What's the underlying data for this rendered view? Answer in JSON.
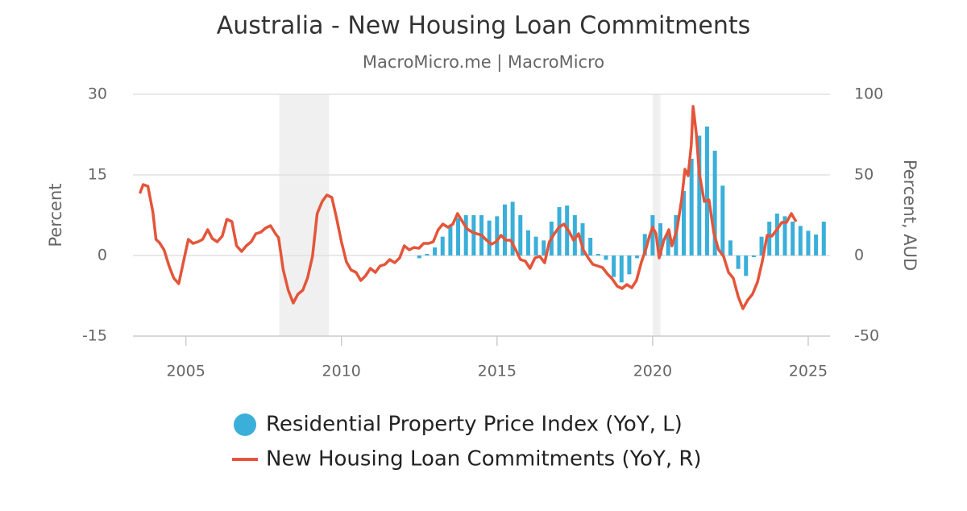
{
  "chart_data": {
    "type": "bar-line",
    "title": "Australia - New Housing Loan Commitments",
    "subtitle": "MacroMicro.me | MacroMicro",
    "y_label": "Percent",
    "y2_label": "Percent, AUD",
    "xlim": [
      2003.3,
      2025.7
    ],
    "xticks": [
      2005,
      2010,
      2015,
      2020,
      2025
    ],
    "ylim": [
      -15,
      30
    ],
    "yticks": [
      -15,
      0,
      15,
      30
    ],
    "y2lim": [
      -50,
      100
    ],
    "y2ticks": [
      -50,
      0,
      50,
      100
    ],
    "grid": true,
    "legend": "bottom",
    "shaded_periods": [
      [
        2008.0,
        2009.6
      ],
      [
        2020.0,
        2020.25
      ]
    ],
    "series": [
      {
        "name": "Residential Property Price Index (YoY, L)",
        "type": "bar",
        "color": "#3aafd9",
        "x": [
          2012.5,
          2012.75,
          2013,
          2013.25,
          2013.5,
          2013.75,
          2014,
          2014.25,
          2014.5,
          2014.75,
          2015,
          2015.25,
          2015.5,
          2015.75,
          2016,
          2016.25,
          2016.5,
          2016.75,
          2017,
          2017.25,
          2017.5,
          2017.75,
          2018,
          2018.25,
          2018.5,
          2018.75,
          2019,
          2019.25,
          2019.5,
          2019.75,
          2020,
          2020.25,
          2020.5,
          2020.75,
          2021,
          2021.25,
          2021.5,
          2021.75,
          2022,
          2022.25,
          2022.5,
          2022.75,
          2023,
          2023.25,
          2023.5,
          2023.75,
          2024,
          2024.25,
          2024.5,
          2024.75,
          2025,
          2025.25,
          2025.5
        ],
        "values": [
          -0.5,
          0.3,
          1.5,
          3.5,
          5.5,
          7,
          7.5,
          7.5,
          7.5,
          6.5,
          7.3,
          9.5,
          10,
          7.5,
          4.7,
          3.5,
          2.8,
          6.3,
          9,
          9.3,
          7.5,
          6,
          3.3,
          0.3,
          -0.8,
          -4,
          -5,
          -3.5,
          -0.5,
          4,
          7.5,
          6,
          4,
          7.5,
          12,
          18,
          22.3,
          24,
          19.5,
          13,
          2.8,
          -2.5,
          -3.8,
          -0.3,
          3.5,
          6.3,
          7.8,
          7.3,
          6.3,
          5.5,
          4.6,
          3.9,
          6.3
        ]
      },
      {
        "name": "New Housing Loan Commitments (YoY, R)",
        "type": "line",
        "axis": "y2",
        "color": "#e4553a",
        "x": [
          2003.52,
          2003.63,
          2003.78,
          2003.94,
          2004.04,
          2004.15,
          2004.3,
          2004.46,
          2004.61,
          2004.77,
          2004.92,
          2005.08,
          2005.23,
          2005.39,
          2005.54,
          2005.7,
          2005.85,
          2006.01,
          2006.17,
          2006.32,
          2006.48,
          2006.63,
          2006.79,
          2006.94,
          2007.1,
          2007.25,
          2007.41,
          2007.56,
          2007.72,
          2007.88,
          2007.98,
          2008.13,
          2008.29,
          2008.45,
          2008.6,
          2008.76,
          2008.91,
          2009.07,
          2009.22,
          2009.38,
          2009.53,
          2009.69,
          2009.84,
          2010.0,
          2010.16,
          2010.31,
          2010.47,
          2010.62,
          2010.78,
          2010.93,
          2011.09,
          2011.24,
          2011.4,
          2011.55,
          2011.71,
          2011.87,
          2012.02,
          2012.18,
          2012.33,
          2012.49,
          2012.64,
          2012.8,
          2012.95,
          2013.11,
          2013.26,
          2013.42,
          2013.58,
          2013.73,
          2013.89,
          2014.04,
          2014.2,
          2014.35,
          2014.51,
          2014.66,
          2014.82,
          2014.97,
          2015.13,
          2015.28,
          2015.44,
          2015.6,
          2015.75,
          2015.91,
          2016.06,
          2016.22,
          2016.37,
          2016.53,
          2016.68,
          2016.84,
          2016.99,
          2017.15,
          2017.31,
          2017.46,
          2017.62,
          2017.77,
          2017.93,
          2018.08,
          2018.24,
          2018.39,
          2018.55,
          2018.7,
          2018.86,
          2019.02,
          2019.17,
          2019.33,
          2019.48,
          2019.64,
          2019.79,
          2019.9,
          2020.0,
          2020.11,
          2020.21,
          2020.36,
          2020.52,
          2020.62,
          2020.78,
          2020.93,
          2021.04,
          2021.14,
          2021.24,
          2021.3,
          2021.4,
          2021.5,
          2021.66,
          2021.81,
          2021.97,
          2022.12,
          2022.28,
          2022.44,
          2022.59,
          2022.75,
          2022.9,
          2023.06,
          2023.21,
          2023.37,
          2023.52,
          2023.68,
          2023.83,
          2023.99,
          2024.15,
          2024.3,
          2024.46,
          2024.61
        ],
        "values": [
          38.5,
          44,
          43,
          27,
          10,
          8,
          3.5,
          -6.5,
          -14,
          -17.5,
          -4,
          10,
          7.5,
          8.5,
          10,
          16,
          10.5,
          8.5,
          12,
          22.5,
          21,
          6,
          2.5,
          6,
          8.5,
          13.5,
          14.5,
          17,
          18.5,
          13.5,
          11,
          -9,
          -21.5,
          -29.5,
          -24,
          -21.5,
          -14,
          -0.5,
          26,
          33.5,
          37.5,
          36,
          23.5,
          8.5,
          -4,
          -9,
          -10.5,
          -15.5,
          -12.5,
          -8,
          -10.5,
          -6.5,
          -5.5,
          -2.5,
          -4.5,
          -1.5,
          6,
          3.5,
          5,
          4.5,
          7.5,
          7.5,
          8.5,
          16,
          19.5,
          17.5,
          19.5,
          26,
          21,
          16.5,
          14.5,
          13.5,
          12.5,
          9.5,
          7,
          8.5,
          12.5,
          9.5,
          9.5,
          3.5,
          -2.5,
          -3.5,
          -8,
          -1.5,
          -0.5,
          -4.5,
          8.5,
          13.5,
          17.5,
          19.5,
          15,
          9.5,
          13.5,
          3.5,
          -1.5,
          -5.5,
          -6.5,
          -7.5,
          -11.5,
          -14.5,
          -19,
          -20.5,
          -18,
          -20,
          -15.5,
          -4,
          4.5,
          12,
          17.5,
          13.5,
          -1.5,
          9.5,
          16,
          6,
          16,
          34.5,
          53.5,
          49.5,
          68.5,
          92.5,
          76,
          51,
          33.5,
          34.5,
          13.5,
          3.5,
          -0.5,
          -10.5,
          -14,
          -25.5,
          -33,
          -27.5,
          -24,
          -16.5,
          -4,
          12.5,
          12,
          16,
          20.5,
          20.5,
          26,
          21
        ]
      }
    ]
  }
}
